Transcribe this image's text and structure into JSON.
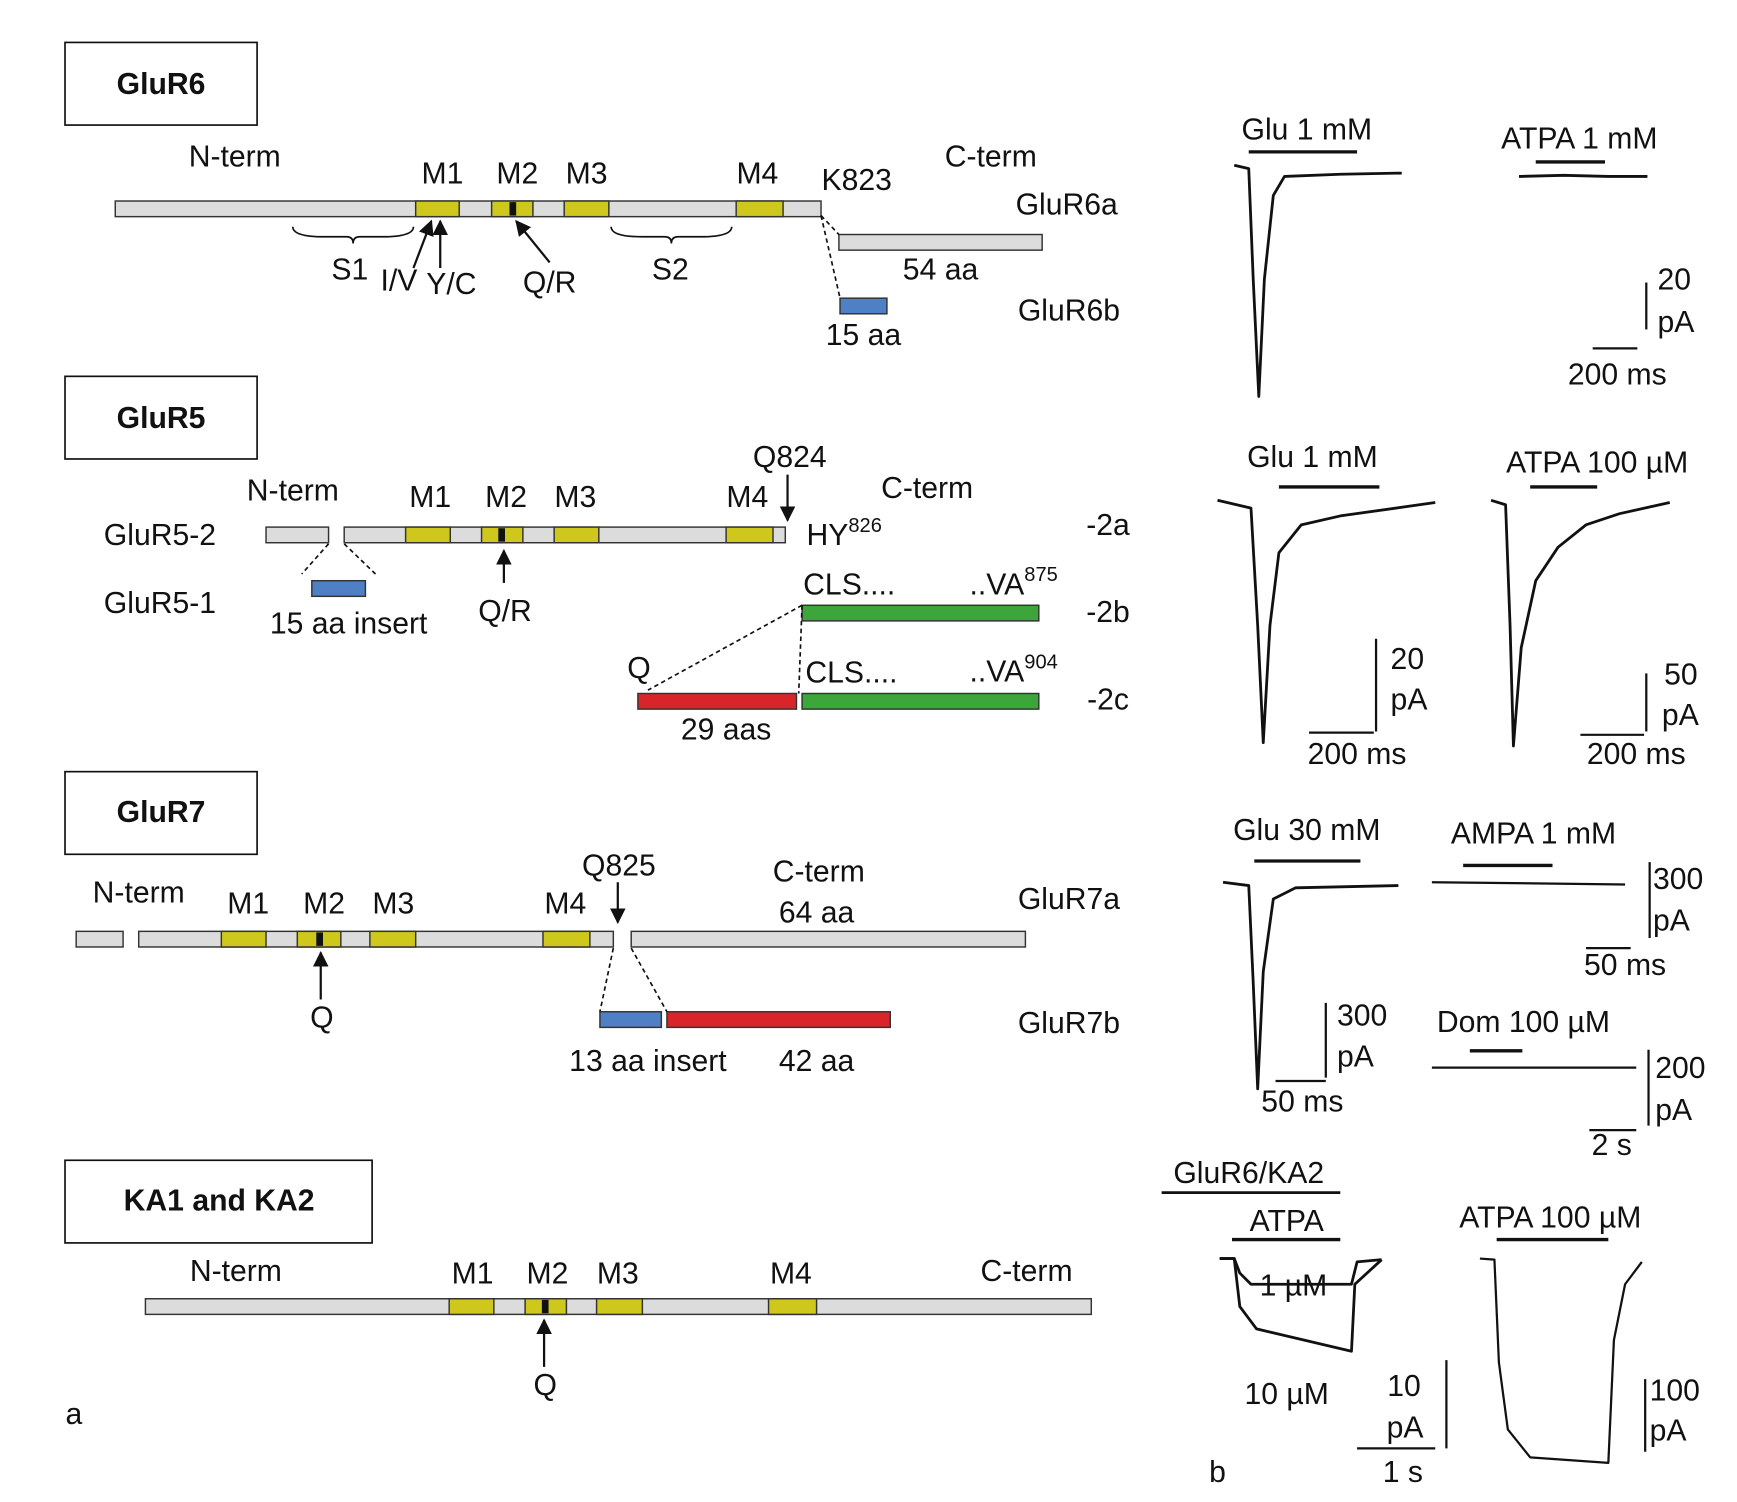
{
  "panel_a": {
    "label": "a",
    "glur6": {
      "title": "GluR6",
      "n_term": "N-term",
      "m1": "M1",
      "m2": "M2",
      "m3": "M3",
      "m4": "M4",
      "k823": "K823",
      "c_term": "C-term",
      "glur6a": "GluR6a",
      "glur6b": "GluR6b",
      "s1": "S1",
      "iv": "I/V",
      "yc": "Y/C",
      "qr": "Q/R",
      "s2": "S2",
      "aa54": "54 aa",
      "aa15": "15 aa"
    },
    "glur5": {
      "title": "GluR5",
      "n_term": "N-term",
      "m1": "M1",
      "m2": "M2",
      "m3": "M3",
      "m4": "M4",
      "q824": "Q824",
      "c_term": "C-term",
      "glur5_2": "GluR5-2",
      "glur5_1": "GluR5-1",
      "hy": "HY",
      "hy_sup": "826",
      "v2a": "-2a",
      "cls_b": "CLS....",
      "va_b": "..VA",
      "va_b_sup": "875",
      "v2b": "-2b",
      "insert": "15 aa insert",
      "qr": "Q/R",
      "q": "Q",
      "cls_c": "CLS....",
      "va_c": "..VA",
      "va_c_sup": "904",
      "v2c": "-2c",
      "aas29": "29 aas"
    },
    "glur7": {
      "title": "GluR7",
      "n_term": "N-term",
      "m1": "M1",
      "m2": "M2",
      "m3": "M3",
      "m4": "M4",
      "q825": "Q825",
      "c_term": "C-term",
      "aa64": "64 aa",
      "glur7a": "GluR7a",
      "q": "Q",
      "glur7b": "GluR7b",
      "insert": "13 aa insert",
      "aa42": "42 aa"
    },
    "ka": {
      "title": "KA1 and KA2",
      "n_term": "N-term",
      "m1": "M1",
      "m2": "M2",
      "m3": "M3",
      "m4": "M4",
      "c_term": "C-term",
      "q": "Q"
    }
  },
  "panel_b": {
    "label": "b",
    "row1": {
      "glu": "Glu 1 mM",
      "atpa": "ATPA 1 mM",
      "scale_y": "20",
      "scale_unit": "pA",
      "scale_x": "200 ms"
    },
    "row2": {
      "glu": "Glu 1 mM",
      "atpa": "ATPA 100 µM",
      "scale1_y": "20",
      "scale1_unit": "pA",
      "scale1_x": "200 ms",
      "scale2_y": "50",
      "scale2_unit": "pA",
      "scale2_x": "200 ms"
    },
    "row3": {
      "glu": "Glu 30 mM",
      "ampa": "AMPA 1 mM",
      "ampa_y": "300",
      "ampa_unit": "pA",
      "ampa_x": "50 ms",
      "glu_y": "300",
      "glu_unit": "pA",
      "glu_x": "50 ms",
      "dom": "Dom 100 µM",
      "dom_y": "200",
      "dom_unit": "pA",
      "dom_x": "2 s"
    },
    "row4": {
      "title": "GluR6/KA2",
      "atpa": "ATPA",
      "low": "1 µM",
      "high": "10 µM",
      "scale1_y": "10",
      "scale1_unit": "pA",
      "scale1_x": "1 s",
      "atpa100": "ATPA 100 µM",
      "scale2_y": "100",
      "scale2_unit": "pA"
    }
  }
}
